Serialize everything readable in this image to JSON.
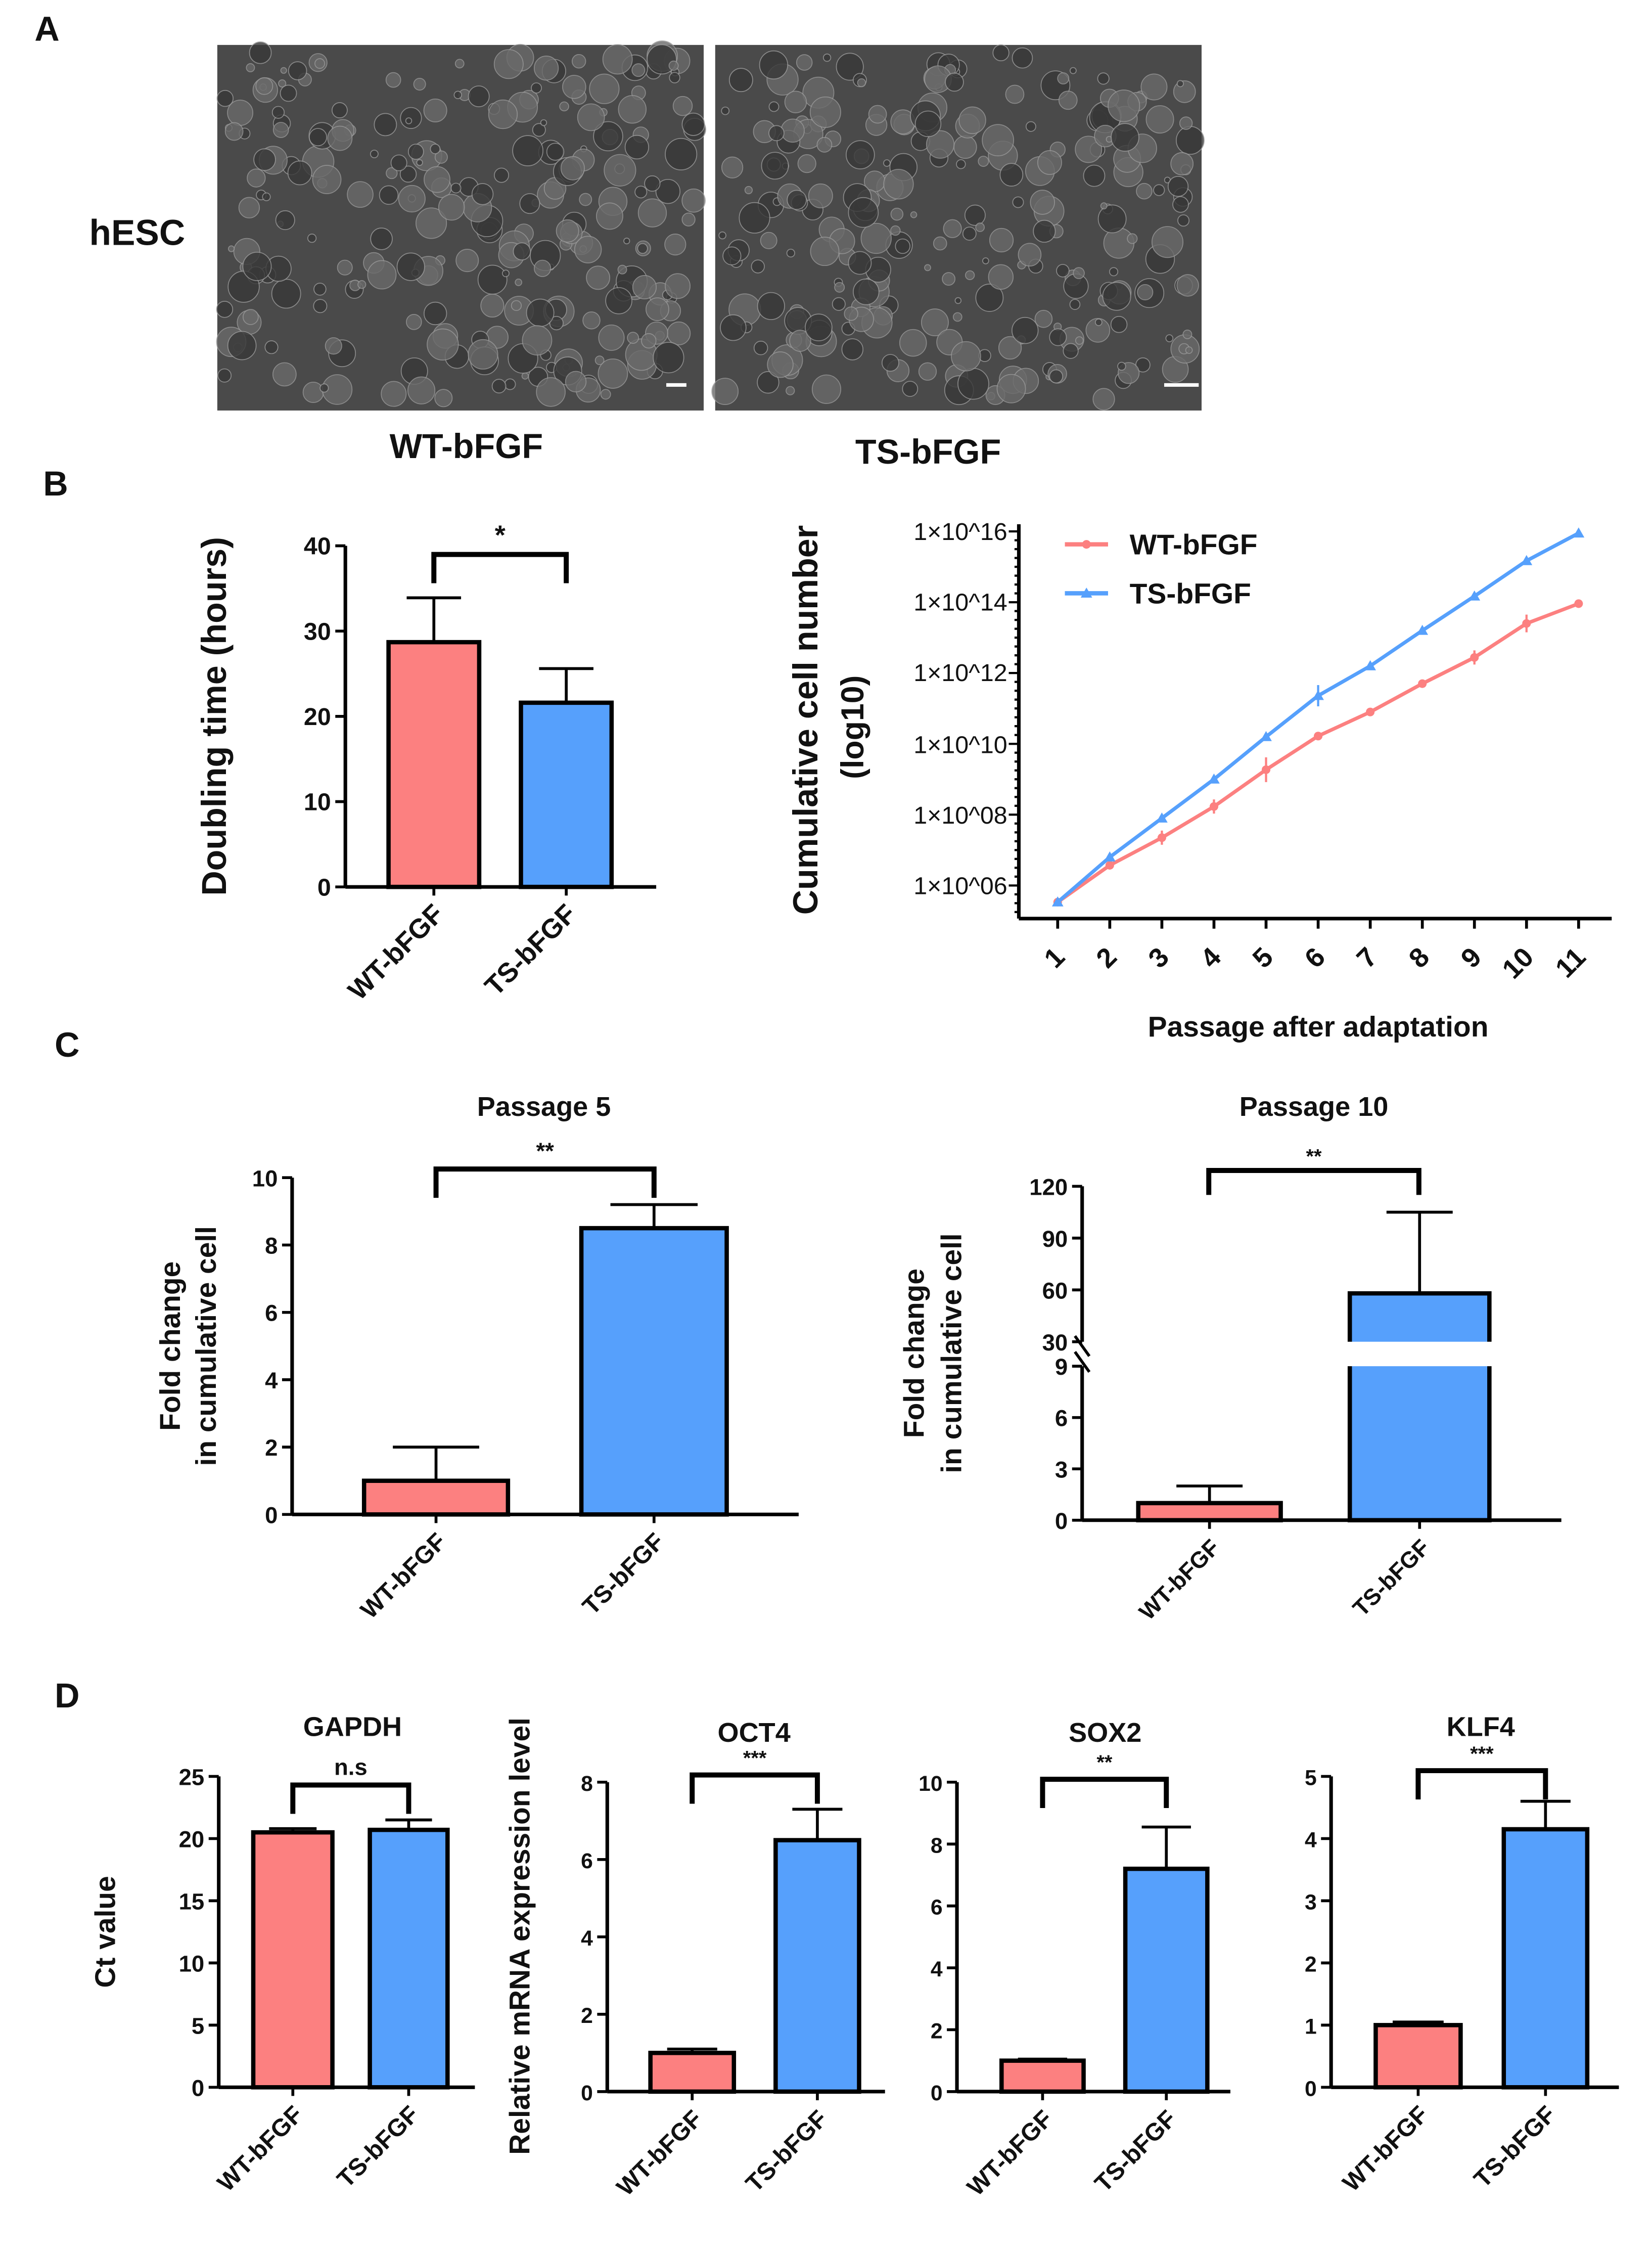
{
  "panel_labels": {
    "a": "A",
    "b": "B",
    "c": "C",
    "d": "D"
  },
  "photos": {
    "row_label": "hESC",
    "captions": [
      "WT-bFGF",
      "TS-bFGF"
    ]
  },
  "colors": {
    "wt": "#fc8080",
    "ts": "#56a0fc",
    "axis": "#000000",
    "photo_bg": "#4a4a4a"
  },
  "chart_data": [
    {
      "id": "doubling",
      "type": "bar",
      "title": "",
      "ylabel": "Doubling time (hours)",
      "categories": [
        "WT-bFGF",
        "TS-bFGF"
      ],
      "values": [
        28.7,
        21.6
      ],
      "errors": [
        5.2,
        4.0
      ],
      "ylim": [
        0,
        40
      ],
      "yticks": [
        0,
        10,
        20,
        30,
        40
      ],
      "significance": "*"
    },
    {
      "id": "growth",
      "type": "line",
      "ylabel": "Cumulative cell number",
      "ylabel2": "(log10)",
      "xlabel": "Passage after adaptation",
      "x": [
        1,
        2,
        3,
        4,
        5,
        6,
        7,
        8,
        9,
        10,
        11
      ],
      "yscale": "log10",
      "ylim_log10": [
        6,
        16
      ],
      "ytick_labels": [
        "1×10^06",
        "1×10^08",
        "1×10^10",
        "1×10^12",
        "1×10^14",
        "1×10^16"
      ],
      "ytick_exp": [
        6,
        8,
        10,
        12,
        14,
        16
      ],
      "legend": "top-left",
      "series": [
        {
          "name": "WT-bFGF",
          "log10_values": [
            5.53,
            6.57,
            7.35,
            8.23,
            9.27,
            10.22,
            10.9,
            11.7,
            12.44,
            13.4,
            13.96
          ],
          "log10_errors": [
            0,
            0.1,
            0.2,
            0.2,
            0.35,
            0.1,
            0.1,
            0.1,
            0.2,
            0.25,
            0.05
          ]
        },
        {
          "name": "TS-bFGF",
          "log10_values": [
            5.53,
            6.8,
            7.9,
            9.0,
            10.2,
            11.36,
            12.2,
            13.2,
            14.17,
            15.17,
            15.95
          ],
          "log10_errors": [
            0,
            0.05,
            0.05,
            0.05,
            0.05,
            0.3,
            0.1,
            0.05,
            0.05,
            0.05,
            0.02
          ]
        }
      ]
    },
    {
      "id": "p5",
      "type": "bar",
      "title": "Passage 5",
      "ylabel": "Fold change",
      "ylabel2": "in cumulative cell",
      "categories": [
        "WT-bFGF",
        "TS-bFGF"
      ],
      "values": [
        1.0,
        8.5
      ],
      "errors": [
        1.0,
        0.7
      ],
      "ylim": [
        0,
        10
      ],
      "yticks": [
        0,
        2,
        4,
        6,
        8,
        10
      ],
      "significance": "**"
    },
    {
      "id": "p10",
      "type": "bar",
      "title": "Passage 10",
      "ylabel": "Fold change",
      "ylabel2": "in cumulative cell",
      "categories": [
        "WT-bFGF",
        "TS-bFGF"
      ],
      "values": [
        1.0,
        58
      ],
      "errors": [
        1.0,
        47
      ],
      "broken_axis": {
        "lower": [
          0,
          9
        ],
        "upper": [
          30,
          120
        ]
      },
      "yticks_lower": [
        0,
        3,
        6,
        9
      ],
      "yticks_upper": [
        30,
        60,
        90,
        120
      ],
      "significance": "**"
    },
    {
      "id": "gapdh",
      "type": "bar",
      "title": "GAPDH",
      "ylabel": "Ct value",
      "categories": [
        "WT-bFGF",
        "TS-bFGF"
      ],
      "values": [
        20.5,
        20.7
      ],
      "errors": [
        0.3,
        0.8
      ],
      "ylim": [
        0,
        25
      ],
      "yticks": [
        0,
        5,
        10,
        15,
        20,
        25
      ],
      "significance": "n.s"
    },
    {
      "id": "oct4",
      "type": "bar",
      "title": "OCT4",
      "ylabel": "Relative mRNA expression level",
      "categories": [
        "WT-bFGF",
        "TS-bFGF"
      ],
      "values": [
        1.0,
        6.5
      ],
      "errors": [
        0.1,
        0.8
      ],
      "ylim": [
        0,
        8
      ],
      "yticks": [
        0,
        2,
        4,
        6,
        8
      ],
      "significance": "***"
    },
    {
      "id": "sox2",
      "type": "bar",
      "title": "SOX2",
      "ylabel": "",
      "categories": [
        "WT-bFGF",
        "TS-bFGF"
      ],
      "values": [
        1.0,
        7.2
      ],
      "errors": [
        0.05,
        1.35
      ],
      "ylim": [
        0,
        10
      ],
      "yticks": [
        0,
        2,
        4,
        6,
        8,
        10
      ],
      "significance": "**"
    },
    {
      "id": "klf4",
      "type": "bar",
      "title": "KLF4",
      "ylabel": "",
      "categories": [
        "WT-bFGF",
        "TS-bFGF"
      ],
      "values": [
        1.0,
        4.15
      ],
      "errors": [
        0.05,
        0.45
      ],
      "ylim": [
        0,
        5
      ],
      "yticks": [
        0,
        1,
        2,
        3,
        4,
        5
      ],
      "significance": "***"
    }
  ]
}
